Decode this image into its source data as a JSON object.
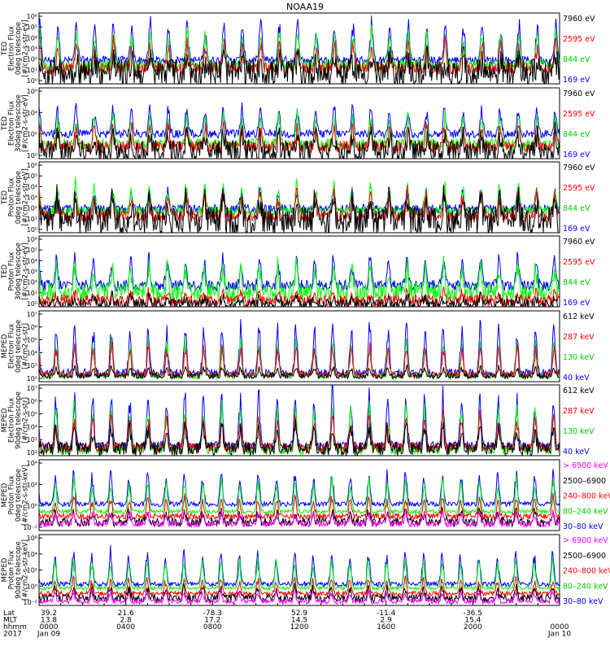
{
  "title": "NOAA19",
  "colors": {
    "black": "#000000",
    "red": "#ff0000",
    "green": "#00ff00",
    "blue": "#0000ff",
    "magenta": "#ff00ff"
  },
  "chart_data": {
    "type": "line",
    "title": "NOAA19",
    "x_start": "2017-01-09 00:00",
    "x_end": "2017-01-10 00:00",
    "panels": [
      {
        "ylabel": [
          "TED",
          "Electron Flux",
          "0deg telescope",
          "[#/cm2-s-str-eV]"
        ],
        "y_ticks": [
          "10⁶",
          "10⁵",
          "10⁴",
          "10³",
          "10²",
          "10¹",
          "10⁰"
        ],
        "y_exp_range": [
          0,
          6
        ],
        "series": [
          {
            "name": "7960 eV",
            "color": "black",
            "base": 0.9,
            "peak": 2.2,
            "noise": 1.2
          },
          {
            "name": "2595 eV",
            "color": "red",
            "base": 1.3,
            "peak": 3.4,
            "noise": 0.5
          },
          {
            "name": "844 eV",
            "color": "green",
            "base": 1.5,
            "peak": 4.4,
            "noise": 0.5
          },
          {
            "name": "169 eV",
            "color": "blue",
            "base": 2.0,
            "peak": 5.2,
            "noise": 0.35
          }
        ]
      },
      {
        "ylabel": [
          "TED",
          "Electron Flux",
          "30deg telescope",
          "[#/cm2-s-str-eV]"
        ],
        "y_ticks": [
          "10⁶",
          "10⁴",
          "10²",
          "10⁰"
        ],
        "y_exp_range": [
          0,
          6
        ],
        "series": [
          {
            "name": "7960 eV",
            "color": "black",
            "base": 0.6,
            "peak": 2.0,
            "noise": 1.0
          },
          {
            "name": "2595 eV",
            "color": "red",
            "base": 1.0,
            "peak": 2.8,
            "noise": 0.5
          },
          {
            "name": "844 eV",
            "color": "green",
            "base": 1.2,
            "peak": 3.5,
            "noise": 0.5
          },
          {
            "name": "169 eV",
            "color": "blue",
            "base": 2.1,
            "peak": 4.4,
            "noise": 0.35
          }
        ]
      },
      {
        "ylabel": [
          "TED",
          "Proton Flux",
          "0deg telescope",
          "[#/cm2-s-str-eV]"
        ],
        "y_ticks": [
          "10⁶",
          "10⁵",
          "10⁴",
          "10³",
          "10²",
          "10¹",
          "10⁰"
        ],
        "y_exp_range": [
          0,
          6
        ],
        "series": [
          {
            "name": "7960 eV",
            "color": "black",
            "base": 1.0,
            "peak": 3.0,
            "noise": 1.2
          },
          {
            "name": "2595 eV",
            "color": "red",
            "base": 1.4,
            "peak": 3.4,
            "noise": 0.5
          },
          {
            "name": "844 eV",
            "color": "green",
            "base": 1.8,
            "peak": 4.0,
            "noise": 0.4
          },
          {
            "name": "169 eV",
            "color": "blue",
            "base": 2.0,
            "peak": 3.6,
            "noise": 0.4
          }
        ]
      },
      {
        "ylabel": [
          "TED",
          "Proton Flux",
          "30deg telescope",
          "[#/cm2-s-str-eV]"
        ],
        "y_ticks": [
          "10⁶",
          "10⁵",
          "10⁴",
          "10³",
          "10²",
          "10¹",
          "10⁰"
        ],
        "y_exp_range": [
          0,
          6
        ],
        "series": [
          {
            "name": "7960 eV",
            "color": "black",
            "base": 0.2,
            "peak": 0.8,
            "noise": 0.5
          },
          {
            "name": "2595 eV",
            "color": "red",
            "base": 0.5,
            "peak": 1.2,
            "noise": 0.5
          },
          {
            "name": "844 eV",
            "color": "green",
            "base": 1.2,
            "peak": 3.5,
            "noise": 0.8
          },
          {
            "name": "169 eV",
            "color": "blue",
            "base": 1.8,
            "peak": 4.2,
            "noise": 0.5
          }
        ]
      },
      {
        "ylabel": [
          "MEPED",
          "Electron Flux",
          "0deg telescope",
          "[#/cm2-s-str]"
        ],
        "y_ticks": [
          "10⁷",
          "10⁶",
          "10⁵",
          "10⁴",
          "10³",
          "10²"
        ],
        "y_exp_range": [
          2,
          7
        ],
        "series": [
          {
            "name": "612 keV",
            "color": "black",
            "base": 2.4,
            "peak": 3.0,
            "noise": 0.2
          },
          {
            "name": "287 keV",
            "color": "red",
            "base": 2.5,
            "peak": 4.5,
            "noise": 0.2
          },
          {
            "name": "130 keV",
            "color": "green",
            "base": 2.4,
            "peak": 4.8,
            "noise": 0.2
          },
          {
            "name": "40 keV",
            "color": "blue",
            "base": 2.6,
            "peak": 6.0,
            "noise": 0.3
          }
        ]
      },
      {
        "ylabel": [
          "MEPED",
          "Electron Flux",
          "90deg telescope",
          "[#/cm2-s-str]"
        ],
        "y_ticks": [
          "10⁷",
          "10⁶",
          "10⁵",
          "10⁴",
          "10³",
          "10²"
        ],
        "y_exp_range": [
          2,
          7
        ],
        "series": [
          {
            "name": "612 keV",
            "color": "black",
            "base": 2.5,
            "peak": 4.0,
            "noise": 0.5
          },
          {
            "name": "287 keV",
            "color": "red",
            "base": 2.6,
            "peak": 4.8,
            "noise": 0.3
          },
          {
            "name": "130 keV",
            "color": "green",
            "base": 2.4,
            "peak": 5.3,
            "noise": 0.3
          },
          {
            "name": "40 keV",
            "color": "blue",
            "base": 2.7,
            "peak": 6.3,
            "noise": 0.3
          }
        ]
      },
      {
        "ylabel": [
          "MEPED",
          "Proton Flux",
          "0deg telescope",
          "[#/cm2-s-str-keV]"
        ],
        "y_ticks": [
          "10⁴",
          "10²",
          "10⁰",
          "10⁻²"
        ],
        "y_exp_range": [
          -2.5,
          5
        ],
        "series": [
          {
            "name": "> 6900 keV",
            "color": "magenta",
            "base": -1.8,
            "peak": -0.6,
            "noise": 0.3
          },
          {
            "name": "2500–6900",
            "color": "black",
            "base": -1.6,
            "peak": -0.4,
            "noise": 0.5
          },
          {
            "name": "240–800 keV",
            "color": "red",
            "base": -1.0,
            "peak": 1.0,
            "noise": 0.3
          },
          {
            "name": "80–240 keV",
            "color": "green",
            "base": -0.5,
            "peak": 2.8,
            "noise": 0.2
          },
          {
            "name": "30–80 keV",
            "color": "blue",
            "base": 0.3,
            "peak": 3.6,
            "noise": 0.25
          }
        ]
      },
      {
        "ylabel": [
          "MEPED",
          "Proton Flux",
          "90deg telescope",
          "[#/cm2-s-str-keV]"
        ],
        "y_ticks": [
          "10⁶",
          "10⁴",
          "10²",
          "10⁰",
          "10⁻²"
        ],
        "y_exp_range": [
          -2.5,
          6.5
        ],
        "series": [
          {
            "name": "> 6900 keV",
            "color": "magenta",
            "base": -2.0,
            "peak": -0.8,
            "noise": 0.3
          },
          {
            "name": "2500–6900",
            "color": "black",
            "base": -1.6,
            "peak": -0.2,
            "noise": 0.5
          },
          {
            "name": "240–800 keV",
            "color": "red",
            "base": -1.0,
            "peak": 0.8,
            "noise": 0.3
          },
          {
            "name": "80–240 keV",
            "color": "green",
            "base": -0.3,
            "peak": 3.2,
            "noise": 0.2
          },
          {
            "name": "30–80 keV",
            "color": "blue",
            "base": 0.2,
            "peak": 4.2,
            "noise": 0.3
          }
        ]
      }
    ],
    "x_axis": {
      "row_labels": [
        "Lat",
        "MLT",
        "hhmm",
        "2017"
      ],
      "ticks": [
        {
          "hour": 0,
          "lat": "39.2",
          "mlt": "13.8",
          "hhmm": "0000",
          "date": "Jan 09"
        },
        {
          "hour": 4,
          "lat": "21.6",
          "mlt": "2.8",
          "hhmm": "0400",
          "date": ""
        },
        {
          "hour": 8,
          "lat": "-78.3",
          "mlt": "17.2",
          "hhmm": "0800",
          "date": ""
        },
        {
          "hour": 12,
          "lat": "52.9",
          "mlt": "14.5",
          "hhmm": "1200",
          "date": ""
        },
        {
          "hour": 16,
          "lat": "-11.4",
          "mlt": "2.9",
          "hhmm": "1600",
          "date": ""
        },
        {
          "hour": 20,
          "lat": "-36.5",
          "mlt": "15.4",
          "hhmm": "2000",
          "date": ""
        },
        {
          "hour": 24,
          "lat": "",
          "mlt": "",
          "hhmm": "0000",
          "date": "Jan 10"
        }
      ]
    },
    "orbit_period_minutes": 102
  }
}
